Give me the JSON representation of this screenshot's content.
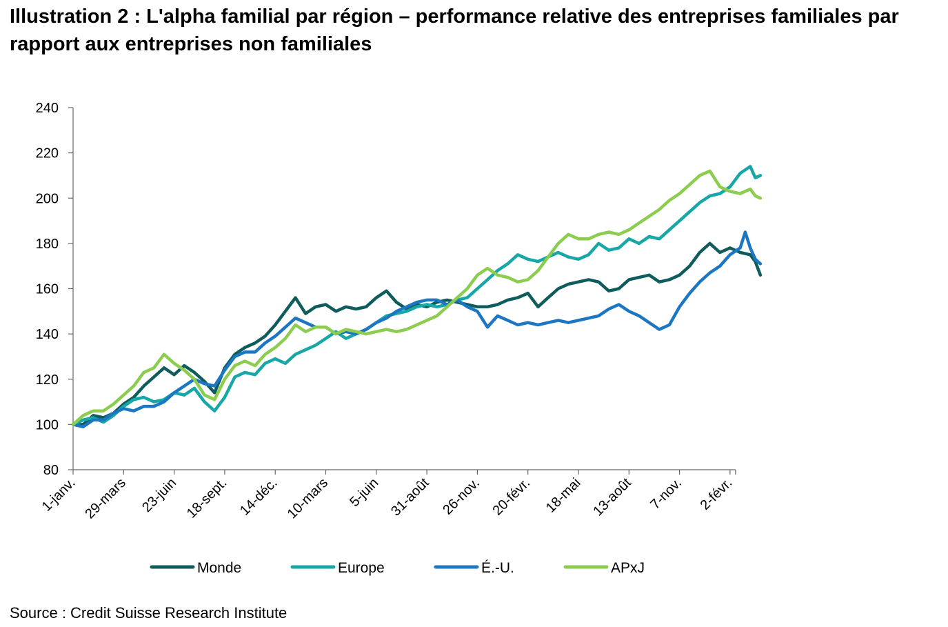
{
  "title": "Illustration 2 : L'alpha familial par région – performance relative des entreprises familiales par rapport aux entreprises non familiales",
  "source": "Source : Credit Suisse Research Institute",
  "chart_data": {
    "type": "line",
    "title": "Illustration 2 : L'alpha familial par région – performance relative des entreprises familiales par rapport aux entreprises non familiales",
    "xlabel": "",
    "ylabel": "",
    "ylim": [
      80,
      240
    ],
    "yticks": [
      80,
      100,
      120,
      140,
      160,
      180,
      200,
      220,
      240
    ],
    "xticks": [
      "1-janv.",
      "29-mars",
      "23-juin",
      "18-sept.",
      "14-déc.",
      "10-mars",
      "5-juin",
      "31-août",
      "26-nov.",
      "20-févr.",
      "18-mai",
      "13-août",
      "7-nov.",
      "2-févr."
    ],
    "grid": false,
    "legend_position": "bottom",
    "series": [
      {
        "name": "Monde",
        "color": "#0f5c5c",
        "values": [
          [
            0,
            100
          ],
          [
            0.2,
            100
          ],
          [
            0.4,
            104
          ],
          [
            0.6,
            103
          ],
          [
            0.8,
            105
          ],
          [
            1.0,
            109
          ],
          [
            1.2,
            112
          ],
          [
            1.4,
            117
          ],
          [
            1.6,
            121
          ],
          [
            1.8,
            125
          ],
          [
            2.0,
            122
          ],
          [
            2.2,
            126
          ],
          [
            2.4,
            123
          ],
          [
            2.6,
            119
          ],
          [
            2.8,
            114
          ],
          [
            3.0,
            125
          ],
          [
            3.2,
            131
          ],
          [
            3.4,
            134
          ],
          [
            3.6,
            136
          ],
          [
            3.8,
            139
          ],
          [
            4.0,
            144
          ],
          [
            4.2,
            150
          ],
          [
            4.4,
            156
          ],
          [
            4.6,
            149
          ],
          [
            4.8,
            152
          ],
          [
            5.0,
            153
          ],
          [
            5.2,
            150
          ],
          [
            5.4,
            152
          ],
          [
            5.6,
            151
          ],
          [
            5.8,
            152
          ],
          [
            6.0,
            156
          ],
          [
            6.2,
            159
          ],
          [
            6.4,
            154
          ],
          [
            6.6,
            151
          ],
          [
            6.8,
            153
          ],
          [
            7.0,
            152
          ],
          [
            7.2,
            154
          ],
          [
            7.4,
            155
          ],
          [
            7.6,
            154
          ],
          [
            7.8,
            153
          ],
          [
            8.0,
            152
          ],
          [
            8.2,
            152
          ],
          [
            8.4,
            153
          ],
          [
            8.6,
            155
          ],
          [
            8.8,
            156
          ],
          [
            9.0,
            158
          ],
          [
            9.2,
            152
          ],
          [
            9.4,
            156
          ],
          [
            9.6,
            160
          ],
          [
            9.8,
            162
          ],
          [
            10.0,
            163
          ],
          [
            10.2,
            164
          ],
          [
            10.4,
            163
          ],
          [
            10.6,
            159
          ],
          [
            10.8,
            160
          ],
          [
            11.0,
            164
          ],
          [
            11.2,
            165
          ],
          [
            11.4,
            166
          ],
          [
            11.6,
            163
          ],
          [
            11.8,
            164
          ],
          [
            12.0,
            166
          ],
          [
            12.2,
            170
          ],
          [
            12.4,
            176
          ],
          [
            12.6,
            180
          ],
          [
            12.8,
            176
          ],
          [
            13.0,
            178
          ],
          [
            13.2,
            176
          ],
          [
            13.4,
            175
          ],
          [
            13.5,
            172
          ],
          [
            13.6,
            166
          ]
        ]
      },
      {
        "name": "Europe",
        "color": "#17a7a7",
        "values": [
          [
            0,
            100
          ],
          [
            0.2,
            102
          ],
          [
            0.4,
            103
          ],
          [
            0.6,
            101
          ],
          [
            0.8,
            104
          ],
          [
            1.0,
            108
          ],
          [
            1.2,
            111
          ],
          [
            1.4,
            112
          ],
          [
            1.6,
            110
          ],
          [
            1.8,
            111
          ],
          [
            2.0,
            114
          ],
          [
            2.2,
            113
          ],
          [
            2.4,
            116
          ],
          [
            2.6,
            110
          ],
          [
            2.8,
            106
          ],
          [
            3.0,
            112
          ],
          [
            3.2,
            121
          ],
          [
            3.4,
            123
          ],
          [
            3.6,
            122
          ],
          [
            3.8,
            127
          ],
          [
            4.0,
            129
          ],
          [
            4.2,
            127
          ],
          [
            4.4,
            131
          ],
          [
            4.6,
            133
          ],
          [
            4.8,
            135
          ],
          [
            5.0,
            138
          ],
          [
            5.2,
            141
          ],
          [
            5.4,
            138
          ],
          [
            5.6,
            140
          ],
          [
            5.8,
            142
          ],
          [
            6.0,
            145
          ],
          [
            6.2,
            148
          ],
          [
            6.4,
            149
          ],
          [
            6.6,
            150
          ],
          [
            6.8,
            152
          ],
          [
            7.0,
            153
          ],
          [
            7.2,
            152
          ],
          [
            7.4,
            153
          ],
          [
            7.6,
            155
          ],
          [
            7.8,
            156
          ],
          [
            8.0,
            160
          ],
          [
            8.2,
            164
          ],
          [
            8.4,
            168
          ],
          [
            8.6,
            171
          ],
          [
            8.8,
            175
          ],
          [
            9.0,
            173
          ],
          [
            9.2,
            172
          ],
          [
            9.4,
            174
          ],
          [
            9.6,
            176
          ],
          [
            9.8,
            174
          ],
          [
            10.0,
            173
          ],
          [
            10.2,
            175
          ],
          [
            10.4,
            180
          ],
          [
            10.6,
            177
          ],
          [
            10.8,
            178
          ],
          [
            11.0,
            182
          ],
          [
            11.2,
            180
          ],
          [
            11.4,
            183
          ],
          [
            11.6,
            182
          ],
          [
            11.8,
            186
          ],
          [
            12.0,
            190
          ],
          [
            12.2,
            194
          ],
          [
            12.4,
            198
          ],
          [
            12.6,
            201
          ],
          [
            12.8,
            202
          ],
          [
            13.0,
            205
          ],
          [
            13.2,
            211
          ],
          [
            13.4,
            214
          ],
          [
            13.5,
            209
          ],
          [
            13.6,
            210
          ]
        ]
      },
      {
        "name": "É.-U.",
        "color": "#1c77c3",
        "values": [
          [
            0,
            100
          ],
          [
            0.2,
            99
          ],
          [
            0.4,
            102
          ],
          [
            0.6,
            102
          ],
          [
            0.8,
            105
          ],
          [
            1.0,
            107
          ],
          [
            1.2,
            106
          ],
          [
            1.4,
            108
          ],
          [
            1.6,
            108
          ],
          [
            1.8,
            110
          ],
          [
            2.0,
            114
          ],
          [
            2.2,
            117
          ],
          [
            2.4,
            120
          ],
          [
            2.6,
            118
          ],
          [
            2.8,
            117
          ],
          [
            3.0,
            124
          ],
          [
            3.2,
            130
          ],
          [
            3.4,
            132
          ],
          [
            3.6,
            132
          ],
          [
            3.8,
            136
          ],
          [
            4.0,
            139
          ],
          [
            4.2,
            143
          ],
          [
            4.4,
            147
          ],
          [
            4.6,
            145
          ],
          [
            4.8,
            143
          ],
          [
            5.0,
            143
          ],
          [
            5.2,
            140
          ],
          [
            5.4,
            141
          ],
          [
            5.6,
            140
          ],
          [
            5.8,
            142
          ],
          [
            6.0,
            145
          ],
          [
            6.2,
            147
          ],
          [
            6.4,
            150
          ],
          [
            6.6,
            152
          ],
          [
            6.8,
            154
          ],
          [
            7.0,
            155
          ],
          [
            7.2,
            155
          ],
          [
            7.4,
            153
          ],
          [
            7.6,
            155
          ],
          [
            7.8,
            152
          ],
          [
            8.0,
            150
          ],
          [
            8.2,
            143
          ],
          [
            8.4,
            148
          ],
          [
            8.6,
            146
          ],
          [
            8.8,
            144
          ],
          [
            9.0,
            145
          ],
          [
            9.2,
            144
          ],
          [
            9.4,
            145
          ],
          [
            9.6,
            146
          ],
          [
            9.8,
            145
          ],
          [
            10.0,
            146
          ],
          [
            10.2,
            147
          ],
          [
            10.4,
            148
          ],
          [
            10.6,
            151
          ],
          [
            10.8,
            153
          ],
          [
            11.0,
            150
          ],
          [
            11.2,
            148
          ],
          [
            11.4,
            145
          ],
          [
            11.6,
            142
          ],
          [
            11.8,
            144
          ],
          [
            12.0,
            152
          ],
          [
            12.2,
            158
          ],
          [
            12.4,
            163
          ],
          [
            12.6,
            167
          ],
          [
            12.8,
            170
          ],
          [
            13.0,
            175
          ],
          [
            13.2,
            178
          ],
          [
            13.3,
            185
          ],
          [
            13.4,
            178
          ],
          [
            13.5,
            173
          ],
          [
            13.6,
            171
          ]
        ]
      },
      {
        "name": "APxJ",
        "color": "#8ccd50",
        "values": [
          [
            0,
            100
          ],
          [
            0.2,
            104
          ],
          [
            0.4,
            106
          ],
          [
            0.6,
            106
          ],
          [
            0.8,
            109
          ],
          [
            1.0,
            113
          ],
          [
            1.2,
            117
          ],
          [
            1.4,
            123
          ],
          [
            1.6,
            125
          ],
          [
            1.8,
            131
          ],
          [
            2.0,
            127
          ],
          [
            2.2,
            124
          ],
          [
            2.4,
            120
          ],
          [
            2.6,
            113
          ],
          [
            2.8,
            111
          ],
          [
            3.0,
            120
          ],
          [
            3.2,
            126
          ],
          [
            3.4,
            128
          ],
          [
            3.6,
            126
          ],
          [
            3.8,
            131
          ],
          [
            4.0,
            134
          ],
          [
            4.2,
            138
          ],
          [
            4.4,
            144
          ],
          [
            4.6,
            141
          ],
          [
            4.8,
            143
          ],
          [
            5.0,
            143
          ],
          [
            5.2,
            140
          ],
          [
            5.4,
            142
          ],
          [
            5.6,
            141
          ],
          [
            5.8,
            140
          ],
          [
            6.0,
            141
          ],
          [
            6.2,
            142
          ],
          [
            6.4,
            141
          ],
          [
            6.6,
            142
          ],
          [
            6.8,
            144
          ],
          [
            7.0,
            146
          ],
          [
            7.2,
            148
          ],
          [
            7.4,
            152
          ],
          [
            7.6,
            156
          ],
          [
            7.8,
            160
          ],
          [
            8.0,
            166
          ],
          [
            8.2,
            169
          ],
          [
            8.4,
            166
          ],
          [
            8.6,
            165
          ],
          [
            8.8,
            163
          ],
          [
            9.0,
            164
          ],
          [
            9.2,
            168
          ],
          [
            9.4,
            174
          ],
          [
            9.6,
            180
          ],
          [
            9.8,
            184
          ],
          [
            10.0,
            182
          ],
          [
            10.2,
            182
          ],
          [
            10.4,
            184
          ],
          [
            10.6,
            185
          ],
          [
            10.8,
            184
          ],
          [
            11.0,
            186
          ],
          [
            11.2,
            189
          ],
          [
            11.4,
            192
          ],
          [
            11.6,
            195
          ],
          [
            11.8,
            199
          ],
          [
            12.0,
            202
          ],
          [
            12.2,
            206
          ],
          [
            12.4,
            210
          ],
          [
            12.6,
            212
          ],
          [
            12.8,
            205
          ],
          [
            13.0,
            203
          ],
          [
            13.2,
            202
          ],
          [
            13.4,
            204
          ],
          [
            13.5,
            201
          ],
          [
            13.6,
            200
          ]
        ]
      }
    ]
  }
}
